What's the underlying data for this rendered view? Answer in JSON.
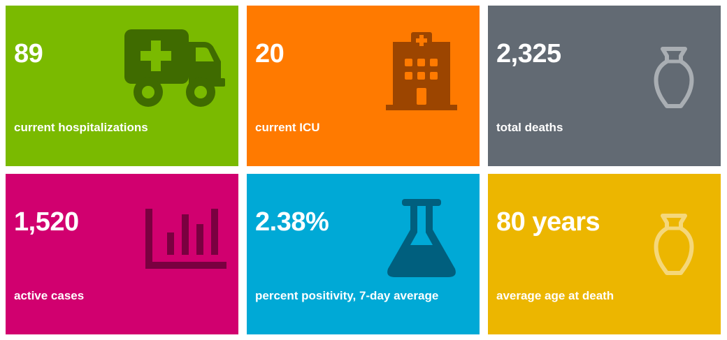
{
  "tiles": [
    {
      "value": "89",
      "label": "current hospitalizations",
      "icon": "ambulance-icon",
      "color": "#7aba00"
    },
    {
      "value": "20",
      "label": "current ICU",
      "icon": "hospital-building-icon",
      "color": "#ff7a00"
    },
    {
      "value": "2,325",
      "label": "total deaths",
      "icon": "urn-icon",
      "color": "#626a73"
    },
    {
      "value": "1,520",
      "label": "active cases",
      "icon": "bar-chart-icon",
      "color": "#d1006f"
    },
    {
      "value": "2.38%",
      "label": "percent positivity, 7-day average",
      "icon": "flask-icon",
      "color": "#00a9d6"
    },
    {
      "value": "80 years",
      "label": "average age at death",
      "icon": "urn-icon",
      "color": "#ecb600"
    }
  ]
}
